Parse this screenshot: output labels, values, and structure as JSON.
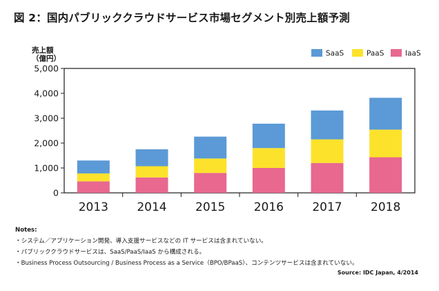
{
  "chart_data": {
    "type": "bar",
    "stacked": true,
    "title": "図 2：国内パブリッククラウドサービス市場セグメント別売上額予測",
    "ylabel_line1": "売上額",
    "ylabel_line2": "（億円）",
    "xlabel": "",
    "ylim": [
      0,
      5000
    ],
    "yticks": [
      "0",
      "1,000",
      "2,000",
      "3,000",
      "4,000",
      "5,000"
    ],
    "ytick_values": [
      0,
      1000,
      2000,
      3000,
      4000,
      5000
    ],
    "categories": [
      "2013",
      "2014",
      "2015",
      "2016",
      "2017",
      "2018"
    ],
    "series": [
      {
        "name": "IaaS",
        "color": "#e8688f",
        "values": [
          460,
          620,
          800,
          1000,
          1200,
          1430
        ]
      },
      {
        "name": "PaaS",
        "color": "#fde22c",
        "values": [
          320,
          450,
          580,
          800,
          950,
          1110
        ]
      },
      {
        "name": "SaaS",
        "color": "#5b9ad6",
        "values": [
          520,
          680,
          880,
          980,
          1160,
          1280
        ]
      }
    ],
    "legend": [
      "SaaS",
      "PaaS",
      "IaaS"
    ],
    "legend_position": "top-right"
  },
  "notes": {
    "heading": "Notes:",
    "items": [
      "・システム／アプリケーション開発、導入支援サービスなどの IT サービスは含まれていない。",
      "・パブリッククラウドサービスは、SaaS/PaaS/IaaS から構成される。",
      "・Business Process Outsourcing / Business Process as a Service（BPO/BPaaS）、コンテンツサービスは含まれていない。"
    ]
  },
  "source": "Source: IDC Japan, 4/2014"
}
